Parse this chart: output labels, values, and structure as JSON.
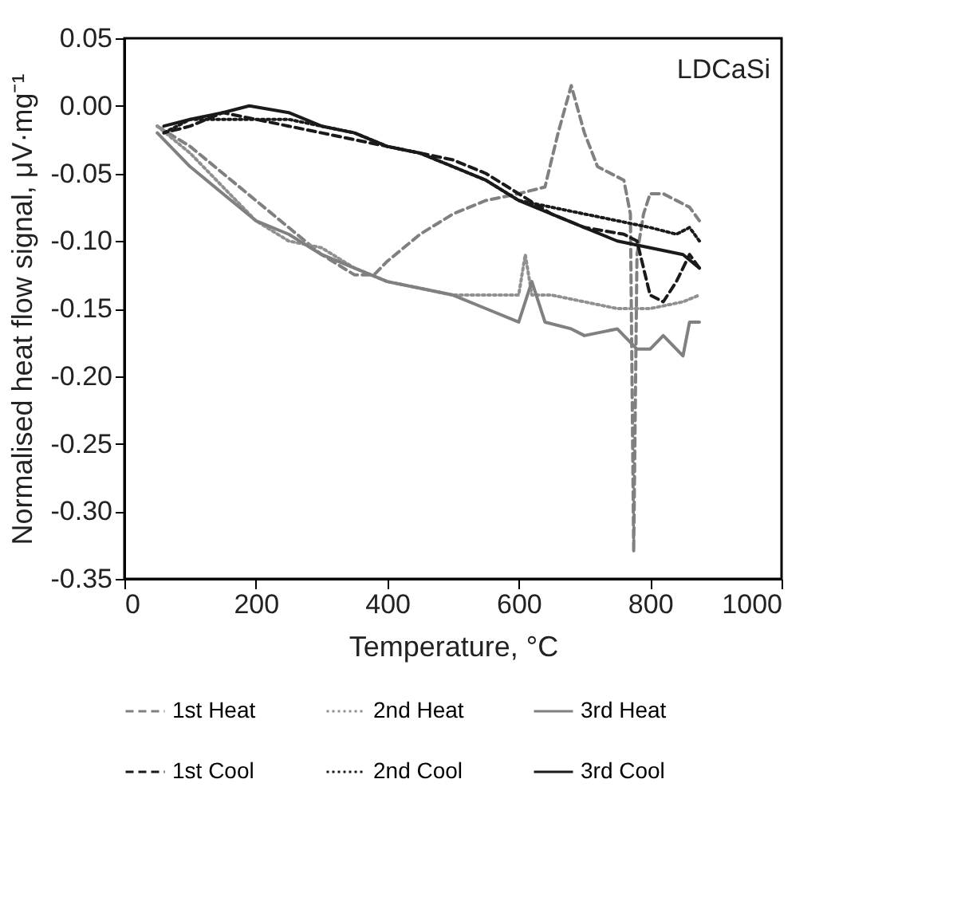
{
  "chart_data": {
    "type": "line",
    "xlabel": "Temperature, °C",
    "ylabel": "Normalised heat flow signal, μV·mg⁻¹",
    "annotations": [
      "LDCaSi"
    ],
    "xlim": [
      0,
      1000
    ],
    "xticks": [
      0,
      200,
      400,
      600,
      800,
      1000
    ],
    "ylim": [
      -0.35,
      0.05
    ],
    "yticks": [
      {
        "value": 0.05,
        "label": "0.05"
      },
      {
        "value": 0,
        "label": "0.00"
      },
      {
        "value": -0.05,
        "label": "-0.05"
      },
      {
        "value": -0.1,
        "label": "-0.10"
      },
      {
        "value": -0.15,
        "label": "-0.15"
      },
      {
        "value": -0.2,
        "label": "-0.20"
      },
      {
        "value": -0.25,
        "label": "-0.25"
      },
      {
        "value": -0.3,
        "label": "-0.30"
      },
      {
        "value": -0.35,
        "label": "-0.35"
      }
    ],
    "grid": false,
    "legend": "bottom",
    "series": [
      {
        "name": "1st Heat",
        "color": "#808080",
        "line_style": "dashed",
        "x": [
          50,
          100,
          150,
          200,
          250,
          300,
          350,
          380,
          400,
          450,
          500,
          550,
          600,
          640,
          660,
          680,
          700,
          720,
          740,
          760,
          770,
          775,
          780,
          790,
          800,
          820,
          840,
          860,
          875
        ],
        "values": [
          -0.015,
          -0.03,
          -0.05,
          -0.07,
          -0.09,
          -0.11,
          -0.125,
          -0.125,
          -0.115,
          -0.095,
          -0.08,
          -0.07,
          -0.065,
          -0.06,
          -0.02,
          0.015,
          -0.02,
          -0.045,
          -0.05,
          -0.055,
          -0.08,
          -0.33,
          -0.11,
          -0.08,
          -0.065,
          -0.065,
          -0.07,
          -0.075,
          -0.085
        ]
      },
      {
        "name": "2nd Heat",
        "color": "#909090",
        "line_style": "dotted",
        "x": [
          50,
          100,
          150,
          200,
          250,
          300,
          350,
          400,
          450,
          500,
          550,
          600,
          610,
          620,
          650,
          700,
          750,
          800,
          850,
          875
        ],
        "values": [
          -0.015,
          -0.035,
          -0.06,
          -0.085,
          -0.1,
          -0.105,
          -0.12,
          -0.13,
          -0.135,
          -0.14,
          -0.14,
          -0.14,
          -0.11,
          -0.14,
          -0.14,
          -0.145,
          -0.15,
          -0.15,
          -0.145,
          -0.14
        ]
      },
      {
        "name": "3rd Heat",
        "color": "#808080",
        "line_style": "solid",
        "x": [
          50,
          100,
          150,
          200,
          250,
          300,
          350,
          400,
          450,
          500,
          550,
          600,
          620,
          640,
          680,
          700,
          750,
          780,
          800,
          820,
          850,
          860,
          875
        ],
        "values": [
          -0.02,
          -0.045,
          -0.065,
          -0.085,
          -0.095,
          -0.11,
          -0.12,
          -0.13,
          -0.135,
          -0.14,
          -0.15,
          -0.16,
          -0.13,
          -0.16,
          -0.165,
          -0.17,
          -0.165,
          -0.18,
          -0.18,
          -0.17,
          -0.185,
          -0.16,
          -0.16
        ]
      },
      {
        "name": "1st Cool",
        "color": "#1a1a1a",
        "line_style": "dashed",
        "x": [
          875,
          860,
          840,
          820,
          800,
          780,
          760,
          700,
          650,
          600,
          550,
          500,
          450,
          400,
          350,
          300,
          250,
          200,
          150,
          100,
          60
        ],
        "values": [
          -0.12,
          -0.11,
          -0.13,
          -0.145,
          -0.14,
          -0.1,
          -0.095,
          -0.09,
          -0.08,
          -0.065,
          -0.05,
          -0.04,
          -0.035,
          -0.03,
          -0.025,
          -0.02,
          -0.015,
          -0.01,
          -0.005,
          -0.015,
          -0.02
        ]
      },
      {
        "name": "2nd Cool",
        "color": "#1a1a1a",
        "line_style": "dotted",
        "x": [
          875,
          860,
          840,
          800,
          750,
          700,
          650,
          600,
          550,
          500,
          450,
          400,
          350,
          300,
          250,
          200,
          150,
          100,
          60
        ],
        "values": [
          -0.1,
          -0.09,
          -0.095,
          -0.09,
          -0.085,
          -0.08,
          -0.075,
          -0.07,
          -0.055,
          -0.045,
          -0.035,
          -0.03,
          -0.02,
          -0.015,
          -0.01,
          -0.01,
          -0.01,
          -0.01,
          -0.02
        ]
      },
      {
        "name": "3rd Cool",
        "color": "#1a1a1a",
        "line_style": "solid",
        "x": [
          875,
          850,
          800,
          750,
          700,
          650,
          600,
          550,
          500,
          450,
          400,
          350,
          300,
          250,
          190,
          150,
          100,
          60
        ],
        "values": [
          -0.12,
          -0.11,
          -0.105,
          -0.1,
          -0.09,
          -0.08,
          -0.07,
          -0.055,
          -0.045,
          -0.035,
          -0.03,
          -0.02,
          -0.015,
          -0.005,
          0.0,
          -0.005,
          -0.01,
          -0.015
        ]
      }
    ]
  }
}
